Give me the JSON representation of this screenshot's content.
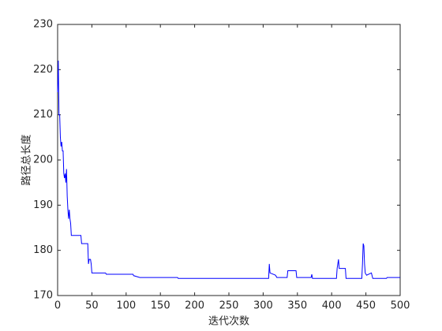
{
  "chart_data": {
    "type": "line",
    "x_label": "迭代次数",
    "y_label": "路径总长度",
    "x": [
      0,
      1,
      2,
      3,
      4,
      5,
      6,
      7,
      8,
      9,
      10,
      11,
      12,
      13,
      14,
      15,
      16,
      17,
      18,
      19,
      20,
      34,
      35,
      44,
      45,
      46,
      48,
      49,
      50,
      70,
      71,
      110,
      111,
      120,
      175,
      176,
      308,
      309,
      310,
      318,
      320,
      335,
      336,
      348,
      349,
      370,
      371,
      372,
      407,
      408,
      410,
      411,
      420,
      421,
      444,
      445,
      446,
      447,
      448,
      449,
      451,
      458,
      460,
      480,
      481,
      500
    ],
    "series": [
      {
        "color": "#0000ff",
        "values": [
          215,
          222,
          210,
          210,
          205,
          203,
          204,
          202,
          202,
          197,
          196,
          197,
          195,
          198,
          192,
          189,
          187,
          189,
          187,
          186,
          183.3,
          183.3,
          181.5,
          181.5,
          177,
          178,
          178,
          177,
          175,
          175,
          174.7,
          174.7,
          174.4,
          174,
          174,
          173.8,
          173.8,
          177,
          175,
          174.5,
          174,
          174,
          175.5,
          175.5,
          174,
          174,
          174.7,
          173.8,
          173.8,
          176,
          178,
          176,
          176,
          173.8,
          173.8,
          177,
          181.5,
          181,
          177,
          175,
          174.5,
          175,
          173.8,
          173.8,
          174,
          174
        ]
      }
    ],
    "xlim": [
      0,
      500
    ],
    "xticks": [
      0,
      50,
      100,
      150,
      200,
      250,
      300,
      350,
      400,
      450,
      500
    ],
    "ylim": [
      170,
      230
    ],
    "yticks": [
      170,
      180,
      190,
      200,
      210,
      220,
      230
    ]
  }
}
